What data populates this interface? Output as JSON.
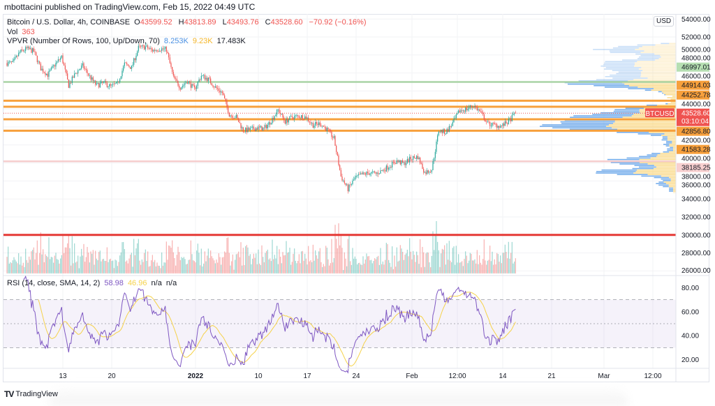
{
  "publish_line": "mbottacini published on TradingView.com, Feb 15, 2022 04:49 UTC",
  "legend": {
    "symbol": "Bitcoin / U.S. Dollar, 4h, COINBASE",
    "o_label": "O",
    "o": "43599.52",
    "h_label": "H",
    "h": "43813.89",
    "l_label": "L",
    "l": "43493.76",
    "c_label": "C",
    "c": "43528.60",
    "change": "−70.92 (−0.16%)",
    "vol_label": "Vol",
    "vol": "363",
    "vpvr_label": "VPVR (Number Of Rows, 100, Up/Down, 70)",
    "vpvr_up": "8.253K",
    "vpvr_down": "9.23K",
    "vpvr_total": "17.483K",
    "rsi_label": "RSI (14, close, SMA, 14, 2)",
    "rsi_value": "58.98",
    "rsi_sma": "46.96",
    "rsi_na1": "n/a",
    "rsi_na2": "n/a"
  },
  "currency_badge": "USD",
  "footer_logo": "TradingView",
  "colors": {
    "up": "#26a69a",
    "down": "#ef5350",
    "rsi": "#7e57c2",
    "rsi_sma": "#f5d24a",
    "vp_up": "#5b9de8",
    "vp_down": "#f9d57a"
  },
  "chart_data": {
    "type": "candlestick",
    "title": "Bitcoin / U.S. Dollar, 4h, COINBASE",
    "interval": "4h",
    "ylim": [
      26000,
      54000
    ],
    "price_ticks": [
      "54000.00",
      "52000.00",
      "50000.00",
      "48000.00",
      "46000.00",
      "44000.00",
      "42000.00",
      "40000.00",
      "38000.00",
      "36000.00",
      "34000.00",
      "32000.00",
      "30000.00",
      "28000.00",
      "26000.00"
    ],
    "time_ticks": [
      {
        "label": "13",
        "day": 8
      },
      {
        "label": "20",
        "day": 15
      },
      {
        "label": "2022",
        "day": 27,
        "bold": true
      },
      {
        "label": "10",
        "day": 36
      },
      {
        "label": "17",
        "day": 43
      },
      {
        "label": "24",
        "day": 50
      },
      {
        "label": "Feb",
        "day": 58
      },
      {
        "label": "12:00",
        "day": 64.5
      },
      {
        "label": "14",
        "day": 71
      },
      {
        "label": "21",
        "day": 78
      },
      {
        "label": "Mar",
        "day": 85.5
      },
      {
        "label": "12:00",
        "day": 92.5
      }
    ],
    "start_date": "2021-12-05",
    "daily_close": [
      49100,
      50300,
      50700,
      50400,
      48500,
      47800,
      48900,
      49800,
      46600,
      48000,
      48800,
      47600,
      46600,
      46900,
      46500,
      46800,
      49000,
      48600,
      50800,
      50900,
      50500,
      50700,
      50600,
      47500,
      46400,
      47100,
      46200,
      47700,
      47300,
      46400,
      45800,
      43400,
      43100,
      41600,
      41700,
      41900,
      41800,
      42700,
      43900,
      42600,
      43100,
      43200,
      43100,
      42200,
      42400,
      41700,
      40700,
      36500,
      35100,
      36300,
      36700,
      36900,
      36800,
      37200,
      37700,
      38200,
      37900,
      38500,
      38700,
      36900,
      37300,
      41600,
      41400,
      42400,
      43800,
      44000,
      44400,
      43600,
      42400,
      42200,
      42100,
      42600,
      43528.6
    ],
    "last_bar": {
      "open": 43599.52,
      "high": 43813.89,
      "low": 43493.76,
      "close": 43528.6,
      "volume": 363
    },
    "levels": [
      {
        "price": 46997.01,
        "label": "46997.01",
        "line": "#a9d4a6",
        "bg": "#b6dfb2",
        "fg": "#131722"
      },
      {
        "price": 44914.03,
        "label": "44914.03",
        "line": "#f7a03c",
        "bg": "#f7a03c",
        "fg": "#131722"
      },
      {
        "price": 44252.78,
        "label": "44252.78",
        "line": "#f7a03c",
        "bg": "#f7a03c",
        "fg": "#131722"
      },
      {
        "price": 42856.8,
        "label": "42856.80",
        "line": "#f7a03c",
        "bg": "#f7a03c",
        "fg": "#131722"
      },
      {
        "price": 41583.28,
        "label": "41583.28",
        "line": "#f7a03c",
        "bg": "#f7a03c",
        "fg": "#131722"
      },
      {
        "price": 38185.25,
        "label": "38185.25",
        "line": "#f6cdcd",
        "bg": "#f8d0d0",
        "fg": "#131722"
      },
      {
        "price": 30000,
        "label": "",
        "line": "#e53935",
        "bg": "",
        "fg": ""
      }
    ],
    "current": {
      "symbol": "BTCUSD",
      "price": 43528.6,
      "price_label": "43528.60",
      "countdown": "03:10:04",
      "bg": "#ef5350"
    },
    "rsi": {
      "length": 14,
      "sma": 14,
      "ticks": [
        "80.00",
        "60.00",
        "40.00",
        "20.00"
      ],
      "tick_values": [
        80,
        60,
        40,
        20
      ],
      "bands": [
        70,
        50,
        30
      ]
    },
    "vpvr": {
      "rows": 100,
      "value_area": 70
    }
  }
}
